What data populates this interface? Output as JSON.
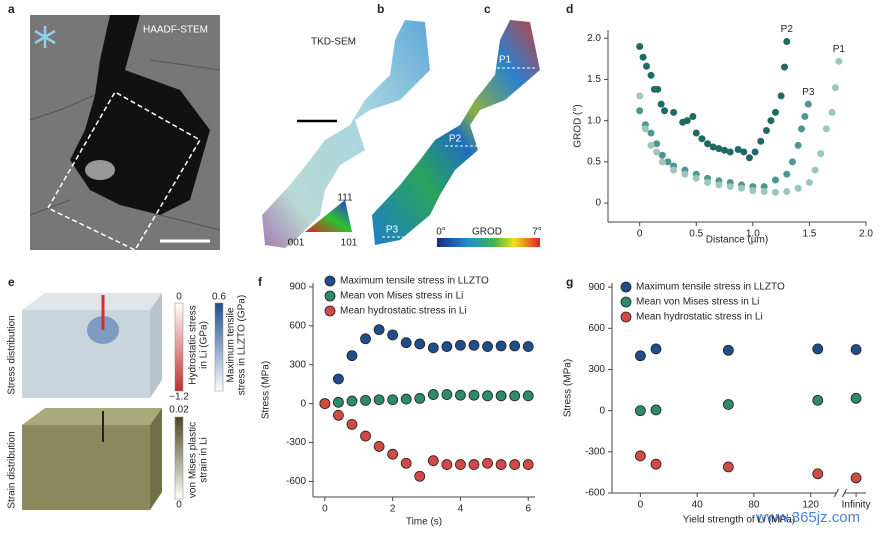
{
  "panels": {
    "labels": [
      "a",
      "b",
      "c",
      "d",
      "e",
      "f",
      "g"
    ],
    "a": {
      "imaging": "HAADF-STEM"
    },
    "b": {
      "imaging": "TKD-SEM",
      "key_top": "111",
      "key_left": "001",
      "key_right": "101"
    },
    "c": {
      "paths": [
        "P1",
        "P2",
        "P3"
      ],
      "bar_min": "0°",
      "bar_title": "GROD",
      "bar_max": "7°"
    },
    "e": {
      "stress_row": "Stress distribution",
      "strain_row": "Strain distribution",
      "hydro_max": "0",
      "hydro_min": "−1.2",
      "hydro_title": [
        "Hydrostatic stress",
        "in Li (GPa)"
      ],
      "tensile_max": "0.6",
      "tensile_title": [
        "Maximum tensile",
        "stress in LLZTO (GPa)"
      ],
      "strain_max": "0.02",
      "strain_min": "0",
      "strain_title": [
        "von Mises plastic",
        "strain in Li"
      ]
    },
    "watermark": "www.365jz.com"
  },
  "chart_data": [
    {
      "type": "scatter",
      "xlabel": "Distance (µm)",
      "ylabel": "GROD (°)",
      "legend": "end-labels",
      "xlim": [
        -0.28,
        2.0
      ],
      "ylim": [
        -0.23,
        2.1
      ],
      "xticks": [
        0,
        0.5,
        {
          "value": 1,
          "label": "1.0"
        },
        1.5,
        {
          "value": 2,
          "label": "2.0"
        }
      ],
      "yticks": [
        0,
        0.5,
        {
          "value": 1,
          "label": "1.0"
        },
        1.5,
        {
          "value": 2,
          "label": "2.0"
        }
      ],
      "series": [
        {
          "name": "P2",
          "color": "#1f6a62",
          "x": [
            0,
            0.03,
            0.06,
            0.1,
            0.13,
            0.16,
            0.19,
            0.22,
            0.3,
            0.38,
            0.42,
            0.47,
            0.5,
            0.55,
            0.6,
            0.65,
            0.7,
            0.75,
            0.8,
            0.87,
            0.92,
            0.97,
            1.02,
            1.07,
            1.12,
            1.16,
            1.2,
            1.25,
            1.28,
            1.3
          ],
          "values": [
            1.9,
            1.77,
            1.66,
            1.55,
            1.38,
            1.38,
            1.2,
            1.12,
            1.1,
            0.98,
            1.0,
            1.05,
            0.85,
            0.78,
            0.72,
            0.68,
            0.66,
            0.64,
            0.62,
            0.65,
            0.62,
            0.55,
            0.62,
            0.75,
            0.88,
            1.0,
            1.1,
            1.3,
            1.65,
            1.96
          ]
        },
        {
          "name": "P3",
          "color": "#4f9690",
          "x": [
            0,
            0.05,
            0.1,
            0.15,
            0.2,
            0.25,
            0.3,
            0.4,
            0.5,
            0.6,
            0.7,
            0.8,
            0.9,
            1.0,
            1.1,
            1.2,
            1.3,
            1.35,
            1.4,
            1.43,
            1.46,
            1.49
          ],
          "values": [
            1.12,
            0.95,
            0.85,
            0.72,
            0.58,
            0.5,
            0.45,
            0.4,
            0.35,
            0.3,
            0.27,
            0.25,
            0.22,
            0.2,
            0.2,
            0.28,
            0.35,
            0.5,
            0.7,
            0.9,
            1.05,
            1.2
          ]
        },
        {
          "name": "P1",
          "color": "#9cc6c0",
          "x": [
            0,
            0.05,
            0.1,
            0.15,
            0.2,
            0.3,
            0.4,
            0.5,
            0.6,
            0.7,
            0.8,
            0.9,
            1.0,
            1.1,
            1.2,
            1.3,
            1.4,
            1.5,
            1.55,
            1.6,
            1.65,
            1.7,
            1.73,
            1.76
          ],
          "values": [
            1.3,
            0.9,
            0.7,
            0.62,
            0.5,
            0.4,
            0.35,
            0.3,
            0.25,
            0.22,
            0.2,
            0.18,
            0.15,
            0.14,
            0.13,
            0.14,
            0.18,
            0.25,
            0.4,
            0.6,
            0.9,
            1.1,
            1.4,
            1.72
          ]
        }
      ]
    },
    {
      "type": "scatter",
      "xlabel": "Time (s)",
      "ylabel": "Stress (MPa)",
      "legend": "upper left",
      "xlim": [
        -0.35,
        6.2
      ],
      "ylim": [
        -720,
        930
      ],
      "xticks": [
        0,
        2,
        4,
        6
      ],
      "yticks": [
        -600,
        -300,
        0,
        300,
        600,
        900
      ],
      "x": [
        0,
        0.4,
        0.8,
        1.2,
        1.6,
        2.0,
        2.4,
        2.8,
        3.2,
        3.6,
        4.0,
        4.4,
        4.8,
        5.2,
        5.6,
        6.0
      ],
      "series": [
        {
          "name": "Maximum tensile stress in LLZTO",
          "color": "#1f4e8c",
          "values": [
            null,
            190,
            370,
            500,
            570,
            530,
            470,
            460,
            430,
            440,
            450,
            450,
            440,
            445,
            445,
            440
          ]
        },
        {
          "name": "Mean von Mises stress in Li",
          "color": "#2e8b6a",
          "values": [
            0,
            10,
            20,
            25,
            30,
            30,
            35,
            40,
            70,
            70,
            65,
            65,
            60,
            60,
            60,
            60
          ]
        },
        {
          "name": "Mean hydrostatic stress in Li",
          "color": "#d24a45",
          "values": [
            0,
            -90,
            -160,
            -250,
            -330,
            -390,
            -460,
            -560,
            -440,
            -470,
            -470,
            -470,
            -460,
            -470,
            -470,
            -470
          ]
        }
      ]
    },
    {
      "type": "scatter",
      "xlabel": "Yield strength of Li (MPa)",
      "ylabel": "Stress (MPa)",
      "legend": "upper left",
      "xlim": [
        -20,
        159
      ],
      "ylim": [
        -600,
        930
      ],
      "x_break": 141,
      "xticks": [
        0,
        40,
        80,
        120,
        {
          "value": 152,
          "label": "Infinity"
        }
      ],
      "yticks": [
        -600,
        -300,
        0,
        300,
        600,
        900
      ],
      "x": [
        0,
        11,
        62,
        125,
        152
      ],
      "series": [
        {
          "name": "Maximum tensile stress in LLZTO",
          "color": "#1f4e8c",
          "values": [
            400,
            450,
            440,
            450,
            445
          ]
        },
        {
          "name": "Mean von Mises stress in Li",
          "color": "#2e8b6a",
          "values": [
            0,
            5,
            45,
            75,
            90
          ]
        },
        {
          "name": "Mean hydrostatic stress in Li",
          "color": "#d24a45",
          "values": [
            -330,
            -390,
            -410,
            -460,
            -490
          ]
        }
      ]
    }
  ]
}
